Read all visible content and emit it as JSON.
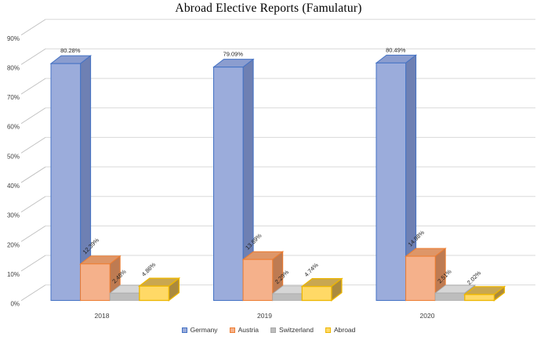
{
  "title": "Abroad Elective Reports (Famulatur)",
  "colors": {
    "background": "#FFFFFF",
    "gridline": "#D9D9D9",
    "tick_connector": "#BFBFBF",
    "axis_label": "#404040",
    "data_label": "#1F1F1F",
    "title_color": "#000000"
  },
  "chart_data": {
    "type": "bar",
    "subtype": "3d-clustered-column",
    "title": "Abroad Elective Reports (Famulatur)",
    "categories": [
      "2018",
      "2019",
      "2020"
    ],
    "series": [
      {
        "name": "Germany",
        "values": [
          80.28,
          79.09,
          80.49
        ],
        "labels": [
          "80.28%",
          "79.09%",
          "80.49%"
        ],
        "colors": {
          "front": "#9BACDB",
          "top": "#8B9DCF",
          "side": "#6E80B3",
          "border": "#4472C4"
        }
      },
      {
        "name": "Austria",
        "values": [
          12.39,
          13.89,
          14.98
        ],
        "labels": [
          "12.39%",
          "13.89%",
          "14.98%"
        ],
        "colors": {
          "front": "#F5B18B",
          "top": "#DE9668",
          "side": "#BE7B52",
          "border": "#ED7D31"
        }
      },
      {
        "name": "Switzerland",
        "values": [
          2.48,
          2.29,
          2.51
        ],
        "labels": [
          "2.48%",
          "2.29%",
          "2.51%"
        ],
        "colors": {
          "front": "#BDBDBD",
          "top": "#D6D6D6",
          "side": "#9C9C9C",
          "border": "#A9A9A9"
        }
      },
      {
        "name": "Abroad",
        "values": [
          4.86,
          4.74,
          2.02
        ],
        "labels": [
          "4.86%",
          "4.74%",
          "2.02%"
        ],
        "colors": {
          "front": "#FFD966",
          "top": "#C9A750",
          "side": "#AB8A3D",
          "border": "#EDB600"
        }
      }
    ],
    "xlabel": "",
    "ylabel": "",
    "y_axis": {
      "min": 0,
      "max": 90,
      "step": 10,
      "suffix": "%",
      "tick_labels": [
        "0%",
        "10%",
        "20%",
        "30%",
        "40%",
        "50%",
        "60%",
        "70%",
        "80%",
        "90%"
      ]
    },
    "grid": true,
    "legend": {
      "position": "bottom",
      "entries": [
        "Germany",
        "Austria",
        "Switzerland",
        "Abroad"
      ]
    }
  }
}
